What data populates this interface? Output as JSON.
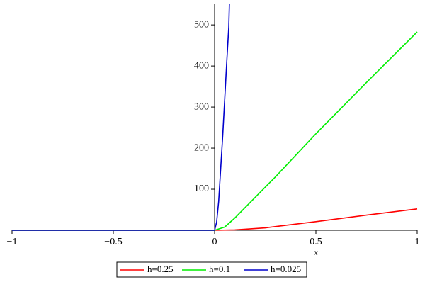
{
  "chart_data": {
    "type": "line",
    "xlabel": "x",
    "xlim": [
      -1,
      1
    ],
    "ylim": [
      0,
      552
    ],
    "xticks": [
      {
        "value": -1,
        "label": "−1"
      },
      {
        "value": -0.5,
        "label": "−0.5"
      },
      0,
      0.5,
      1
    ],
    "yticks": [
      100,
      200,
      300,
      400,
      500
    ],
    "legend": "bottom",
    "series": [
      {
        "name": "h=0.25",
        "color": "#ff0000",
        "x": [
          -1,
          0,
          0.1,
          0.25,
          0.5,
          0.75,
          1
        ],
        "values": [
          0,
          0,
          1,
          6,
          21,
          37,
          52
        ]
      },
      {
        "name": "h=0.1",
        "color": "#00ee00",
        "x": [
          -1,
          0,
          0.05,
          0.1,
          0.2,
          0.3,
          0.5,
          0.75,
          1
        ],
        "values": [
          0,
          0,
          8,
          30,
          80,
          130,
          235,
          360,
          483
        ]
      },
      {
        "name": "h=0.025",
        "color": "#0000cc",
        "x": [
          -1,
          0,
          0.01,
          0.02,
          0.03,
          0.04,
          0.05,
          0.06,
          0.07,
          0.073
        ],
        "values": [
          0,
          0,
          20,
          70,
          150,
          230,
          320,
          410,
          495,
          552
        ]
      }
    ]
  }
}
